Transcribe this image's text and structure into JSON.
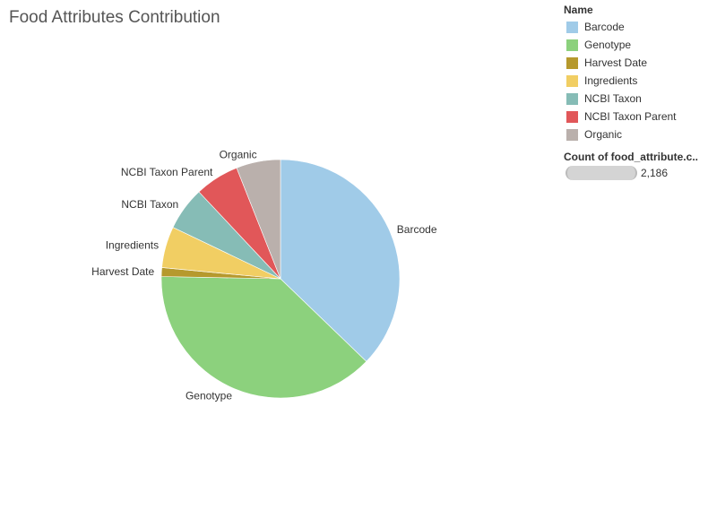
{
  "chart_data": {
    "type": "pie",
    "title": "Food Attributes Contribution",
    "categories": [
      "Barcode",
      "Genotype",
      "Harvest Date",
      "Ingredients",
      "NCBI Taxon",
      "NCBI Taxon Parent",
      "Organic"
    ],
    "values": [
      37.2,
      38.1,
      1.2,
      5.6,
      5.9,
      6.0,
      6.0
    ],
    "colors": [
      "#A0CBE8",
      "#8CD17D",
      "#B6992D",
      "#F1CE63",
      "#86BCB6",
      "#E15759",
      "#BAB0AC"
    ],
    "legend": {
      "title": "Name",
      "placement": "top-right"
    },
    "size_legend": {
      "title": "Count of food_attribute.c..",
      "value": "2,186"
    }
  }
}
